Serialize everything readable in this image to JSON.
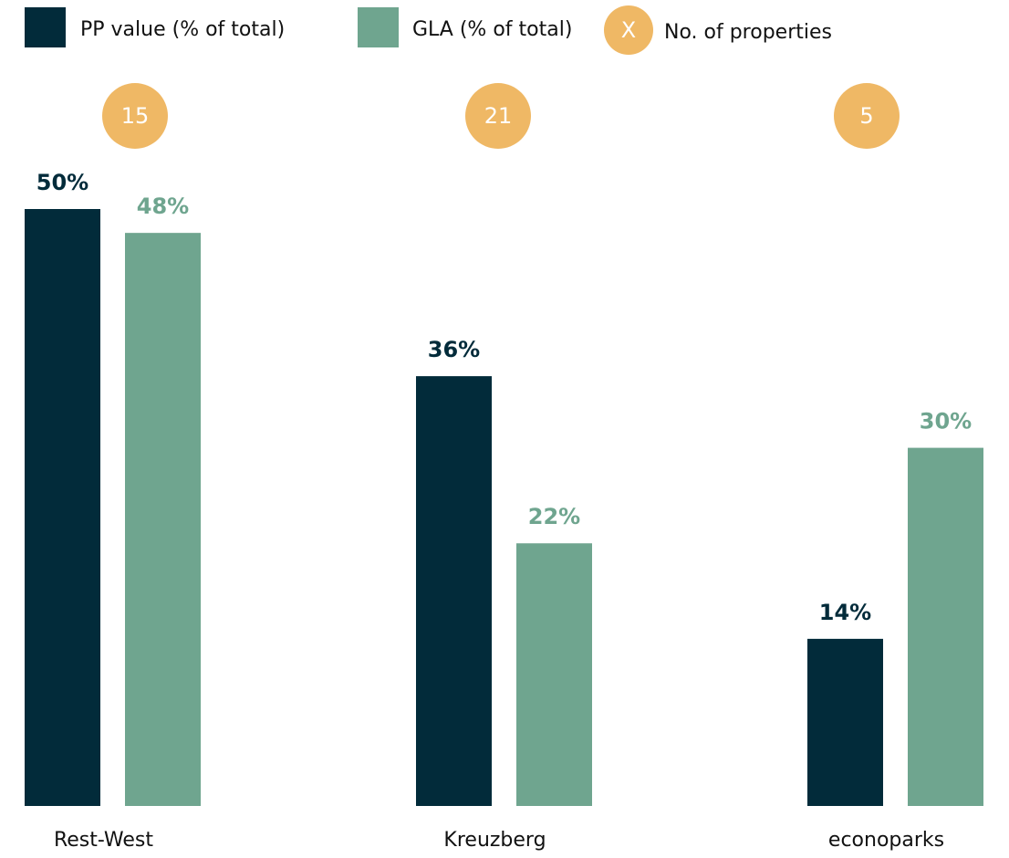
{
  "chart_data": {
    "type": "bar",
    "categories": [
      "Rest-West",
      "Kreuzberg",
      "econoparks"
    ],
    "series": [
      {
        "name": "PP value (% of total)",
        "color": "#022b3a",
        "values": [
          50,
          36,
          14
        ],
        "value_labels": [
          "50%",
          "36%",
          "14%"
        ]
      },
      {
        "name": "GLA (% of total)",
        "color": "#6fa58f",
        "values": [
          48,
          22,
          30
        ],
        "value_labels": [
          "48%",
          "22%",
          "30%"
        ]
      }
    ],
    "counts": {
      "name": "No. of properties",
      "legend_symbol": "X",
      "color": "#efb865",
      "values": [
        15,
        21,
        5
      ]
    }
  }
}
